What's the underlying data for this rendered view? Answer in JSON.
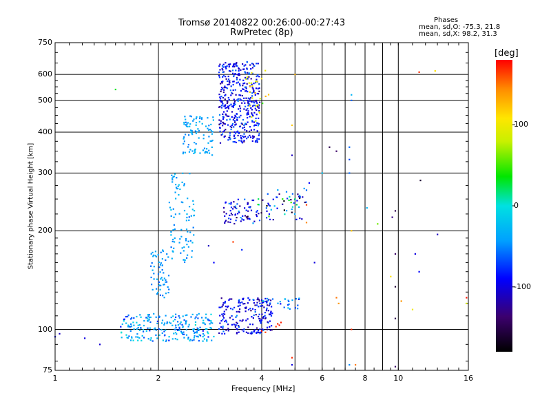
{
  "header": {
    "title_line1": "Tromsø 20140822 00:26:00-00:27:43",
    "title_line2": "RwPretec (8p)"
  },
  "phases_box": {
    "heading": "Phases",
    "line_o": "mean, sd,O: -75.3, 21.8",
    "line_x": "mean, sd,X:  98.2, 31.3"
  },
  "colorbar": {
    "label": "[deg]",
    "ticks": [
      {
        "value": 100,
        "label": "100"
      },
      {
        "value": 0,
        "label": "0"
      },
      {
        "value": -100,
        "label": "-100"
      }
    ],
    "range": [
      -180,
      180
    ]
  },
  "chart_data": {
    "type": "scatter",
    "xlabel": "Frequency [MHz]",
    "ylabel": "Stationary phase Virtual Height [km]",
    "x_scale": "log2",
    "y_scale": "log",
    "xlim": [
      1,
      16
    ],
    "ylim": [
      75,
      750
    ],
    "x_ticks": [
      1,
      2,
      4,
      6,
      8,
      10,
      16
    ],
    "x_tick_labels": [
      "1",
      "2",
      "4",
      "6",
      "8",
      "10",
      "16"
    ],
    "x_minor_lines": [
      5,
      7,
      9
    ],
    "y_ticks": [
      75,
      100,
      200,
      300,
      400,
      500,
      600,
      750
    ],
    "y_tick_labels": [
      "75",
      "100",
      "200",
      "300",
      "400",
      "500",
      "600",
      "750"
    ],
    "grid": true,
    "color_encodes": "phase [deg]",
    "clusters": [
      {
        "x_range": [
          1.55,
          2.9
        ],
        "y_range": [
          92,
          112
        ],
        "phase_mean": -40,
        "phase_sd": 20,
        "n": 230
      },
      {
        "x_range": [
          3.0,
          4.3
        ],
        "y_range": [
          97,
          125
        ],
        "phase_mean": -95,
        "phase_sd": 22,
        "n": 200
      },
      {
        "x_range": [
          4.0,
          5.2
        ],
        "y_range": [
          115,
          125
        ],
        "phase_mean": -50,
        "phase_sd": 25,
        "n": 25
      },
      {
        "x_range": [
          1.9,
          2.15
        ],
        "y_range": [
          125,
          175
        ],
        "phase_mean": -45,
        "phase_sd": 10,
        "n": 60
      },
      {
        "x_range": [
          2.15,
          2.55
        ],
        "y_range": [
          160,
          300
        ],
        "phase_mean": -40,
        "phase_sd": 10,
        "n": 90
      },
      {
        "x_range": [
          3.1,
          3.9
        ],
        "y_range": [
          210,
          250
        ],
        "phase_mean": -95,
        "phase_sd": 25,
        "n": 70
      },
      {
        "x_range": [
          3.9,
          5.4
        ],
        "y_range": [
          215,
          270
        ],
        "phase_mean": -60,
        "phase_sd": 60,
        "n": 60
      },
      {
        "x_range": [
          2.35,
          2.9
        ],
        "y_range": [
          340,
          450
        ],
        "phase_mean": -40,
        "phase_sd": 10,
        "n": 90
      },
      {
        "x_range": [
          3.0,
          3.95
        ],
        "y_range": [
          370,
          660
        ],
        "phase_mean": -90,
        "phase_sd": 20,
        "n": 420
      },
      {
        "x_range": [
          3.6,
          4.2
        ],
        "y_range": [
          430,
          620
        ],
        "phase_mean": 90,
        "phase_sd": 25,
        "n": 25
      }
    ],
    "highlight_points": [
      {
        "x": 4.45,
        "y": 104,
        "phase": 170
      },
      {
        "x": 4.5,
        "y": 103,
        "phase": 175
      },
      {
        "x": 4.4,
        "y": 102,
        "phase": 165
      },
      {
        "x": 4.55,
        "y": 105,
        "phase": 172
      },
      {
        "x": 4.0,
        "y": 99,
        "phase": 178
      },
      {
        "x": 4.1,
        "y": 98,
        "phase": 160
      },
      {
        "x": 5.0,
        "y": 250,
        "phase": 20
      },
      {
        "x": 4.8,
        "y": 248,
        "phase": 30
      },
      {
        "x": 4.6,
        "y": 250,
        "phase": 40
      },
      {
        "x": 1.5,
        "y": 540,
        "phase": 30
      },
      {
        "x": 11.5,
        "y": 610,
        "phase": 170
      },
      {
        "x": 12.8,
        "y": 615,
        "phase": 110
      },
      {
        "x": 4.9,
        "y": 420,
        "phase": 120
      },
      {
        "x": 5.0,
        "y": 600,
        "phase": 130
      },
      {
        "x": 8.7,
        "y": 210,
        "phase": 60
      },
      {
        "x": 6.6,
        "y": 125,
        "phase": 150
      },
      {
        "x": 6.7,
        "y": 120,
        "phase": 140
      },
      {
        "x": 7.3,
        "y": 100,
        "phase": 170
      },
      {
        "x": 7.5,
        "y": 78,
        "phase": 150
      },
      {
        "x": 4.9,
        "y": 82,
        "phase": 170
      },
      {
        "x": 9.5,
        "y": 145,
        "phase": 110
      },
      {
        "x": 11,
        "y": 115,
        "phase": 100
      },
      {
        "x": 10.2,
        "y": 122,
        "phase": 140
      },
      {
        "x": 15.8,
        "y": 125,
        "phase": 175
      },
      {
        "x": 15.8,
        "y": 120,
        "phase": 90
      },
      {
        "x": 7.3,
        "y": 200,
        "phase": 120
      },
      {
        "x": 5.4,
        "y": 240,
        "phase": 165
      },
      {
        "x": 5.4,
        "y": 212,
        "phase": 145
      },
      {
        "x": 3.3,
        "y": 185,
        "phase": 165
      }
    ],
    "sparse_points": [
      {
        "x": 1.03,
        "y": 97,
        "phase": -110
      },
      {
        "x": 1.0,
        "y": 95,
        "phase": -95
      },
      {
        "x": 1.22,
        "y": 94,
        "phase": -100
      },
      {
        "x": 1.35,
        "y": 90,
        "phase": -105
      },
      {
        "x": 6.3,
        "y": 360,
        "phase": -150
      },
      {
        "x": 6.6,
        "y": 350,
        "phase": -140
      },
      {
        "x": 7.2,
        "y": 360,
        "phase": -60
      },
      {
        "x": 7.2,
        "y": 330,
        "phase": -70
      },
      {
        "x": 7.2,
        "y": 300,
        "phase": -60
      },
      {
        "x": 7.3,
        "y": 520,
        "phase": -30
      },
      {
        "x": 7.3,
        "y": 500,
        "phase": -60
      },
      {
        "x": 6.0,
        "y": 300,
        "phase": -20
      },
      {
        "x": 5.5,
        "y": 280,
        "phase": -90
      },
      {
        "x": 9.8,
        "y": 230,
        "phase": -150
      },
      {
        "x": 9.6,
        "y": 220,
        "phase": -130
      },
      {
        "x": 11.6,
        "y": 285,
        "phase": -160
      },
      {
        "x": 13.0,
        "y": 195,
        "phase": -110
      },
      {
        "x": 11.2,
        "y": 170,
        "phase": -100
      },
      {
        "x": 9.8,
        "y": 170,
        "phase": -140
      },
      {
        "x": 9.8,
        "y": 135,
        "phase": -160
      },
      {
        "x": 11.5,
        "y": 150,
        "phase": -90
      },
      {
        "x": 9.8,
        "y": 108,
        "phase": -150
      },
      {
        "x": 9.8,
        "y": 77,
        "phase": -140
      },
      {
        "x": 7.2,
        "y": 78,
        "phase": -50
      },
      {
        "x": 4.9,
        "y": 78,
        "phase": -100
      },
      {
        "x": 4.9,
        "y": 340,
        "phase": -110
      },
      {
        "x": 5.7,
        "y": 160,
        "phase": -100
      },
      {
        "x": 2.8,
        "y": 180,
        "phase": -110
      },
      {
        "x": 2.9,
        "y": 160,
        "phase": -90
      },
      {
        "x": 3.5,
        "y": 175,
        "phase": -80
      },
      {
        "x": 8.1,
        "y": 235,
        "phase": -30
      }
    ]
  }
}
